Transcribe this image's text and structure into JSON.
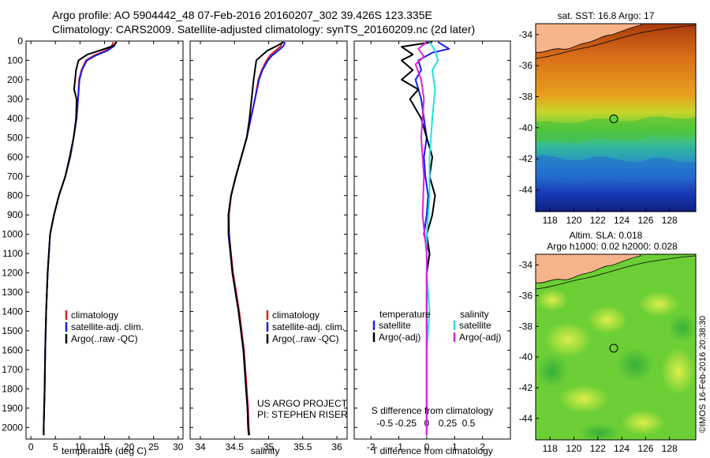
{
  "header": {
    "line1": "Argo profile: AO 5904442_48 07-Feb-2016 20160207_302 39.426S 123.335E",
    "line2": "Climatology: CARS2009. Satellite-adjusted climatology: synTS_20160209.nc (2d later)"
  },
  "colors": {
    "climatology": "#e02020",
    "satellite": "#1a1aee",
    "argo": "#000000",
    "cyan": "#22e0e0",
    "magenta": "#e020e0",
    "land": "#f7b48a"
  },
  "chart_data": [
    {
      "type": "line",
      "id": "temperature",
      "xlabel": "temperature (deg C)",
      "ylabel": "",
      "xlim": [
        -1,
        31
      ],
      "ylim": [
        2060,
        0
      ],
      "xticks": [
        "0",
        "5",
        "10",
        "15",
        "20",
        "25",
        "30"
      ],
      "xtick_values": [
        0,
        5,
        10,
        15,
        20,
        25,
        30
      ],
      "yticks": [
        "0",
        "100",
        "200",
        "300",
        "400",
        "500",
        "600",
        "700",
        "800",
        "900",
        "1000",
        "1100",
        "1200",
        "1300",
        "1400",
        "1500",
        "1600",
        "1700",
        "1800",
        "1900",
        "2000"
      ],
      "ytick_values": [
        0,
        100,
        200,
        300,
        400,
        500,
        600,
        700,
        800,
        900,
        1000,
        1100,
        1200,
        1300,
        1400,
        1500,
        1600,
        1700,
        1800,
        1900,
        2000
      ],
      "legend": [
        "climatology",
        "satellite-adj. clim.",
        "Argo(..raw -QC)"
      ],
      "series": [
        {
          "name": "climatology",
          "color": "red",
          "x": [
            16.8,
            16.5,
            15.2,
            12.8,
            11.2,
            10.3,
            9.8,
            9.6,
            9.3,
            8.7,
            8.0,
            7.0,
            5.7,
            4.7,
            3.9,
            3.4,
            3.1,
            2.9,
            2.8,
            2.7,
            2.6,
            2.6
          ],
          "y": [
            5,
            25,
            50,
            75,
            100,
            150,
            200,
            300,
            400,
            500,
            600,
            700,
            800,
            900,
            1000,
            1200,
            1400,
            1600,
            1800,
            1900,
            2000,
            2040
          ]
        },
        {
          "name": "satellite-adj. clim.",
          "color": "blue",
          "x": [
            17.3,
            17.0,
            15.6,
            13.2,
            11.4,
            10.4,
            9.9,
            9.6,
            9.3,
            8.7,
            8.0,
            7.0,
            5.7,
            4.7,
            3.9,
            3.4,
            3.1,
            2.9,
            2.8,
            2.7,
            2.6,
            2.6
          ],
          "y": [
            5,
            25,
            50,
            75,
            100,
            150,
            200,
            300,
            400,
            500,
            600,
            700,
            800,
            900,
            1000,
            1200,
            1400,
            1600,
            1800,
            1900,
            2000,
            2040
          ]
        },
        {
          "name": "Argo(..raw -QC)",
          "color": "black",
          "x": [
            17.5,
            16.8,
            14.5,
            11.5,
            9.7,
            9.2,
            9.0,
            8.8,
            9.3,
            9.2,
            8.7,
            7.9,
            7.0,
            5.7,
            4.7,
            3.9,
            3.4,
            3.1,
            2.9,
            2.8,
            2.7,
            2.6,
            2.6
          ],
          "y": [
            5,
            25,
            45,
            70,
            100,
            150,
            200,
            250,
            300,
            400,
            500,
            600,
            700,
            800,
            900,
            1000,
            1200,
            1400,
            1600,
            1800,
            1900,
            2000,
            2040
          ]
        }
      ]
    },
    {
      "type": "line",
      "id": "salinity",
      "xlabel": "salinity",
      "xlim": [
        33.85,
        36.15
      ],
      "ylim": [
        2060,
        0
      ],
      "xticks": [
        "34",
        "34.5",
        "35",
        "35.5",
        "36"
      ],
      "xtick_values": [
        34,
        34.5,
        35,
        35.5,
        36
      ],
      "legend": [
        "climatology",
        "satellite-adj. clim.",
        "Argo(..raw -QC)"
      ],
      "annotation": [
        "US ARGO PROJECT",
        "PI: STEPHEN RISER"
      ],
      "series": [
        {
          "name": "climatology",
          "color": "red",
          "x": [
            35.2,
            35.18,
            35.1,
            35.02,
            34.97,
            34.9,
            34.85,
            34.8,
            34.74,
            34.68,
            34.6,
            34.52,
            34.45,
            34.42,
            34.42,
            34.48,
            34.57,
            34.64,
            34.68,
            34.7,
            34.71,
            34.72
          ],
          "y": [
            5,
            25,
            50,
            75,
            100,
            150,
            200,
            300,
            400,
            500,
            600,
            700,
            800,
            900,
            1000,
            1200,
            1400,
            1600,
            1800,
            1900,
            2000,
            2040
          ]
        },
        {
          "name": "satellite-adj. clim.",
          "color": "blue",
          "x": [
            35.24,
            35.22,
            35.14,
            35.05,
            34.99,
            34.91,
            34.86,
            34.8,
            34.74,
            34.68,
            34.6,
            34.52,
            34.45,
            34.41,
            34.41,
            34.47,
            34.56,
            34.63,
            34.67,
            34.69,
            34.7,
            34.71
          ],
          "y": [
            5,
            25,
            50,
            75,
            100,
            150,
            200,
            300,
            400,
            500,
            600,
            700,
            800,
            900,
            1000,
            1200,
            1400,
            1600,
            1800,
            1900,
            2000,
            2040
          ]
        },
        {
          "name": "Argo(..raw -QC)",
          "color": "black",
          "x": [
            35.22,
            35.12,
            34.98,
            34.9,
            34.82,
            34.8,
            34.78,
            34.75,
            34.72,
            34.68,
            34.6,
            34.52,
            34.45,
            34.41,
            34.42,
            34.47,
            34.56,
            34.63,
            34.67,
            34.69,
            34.7,
            34.71
          ],
          "y": [
            5,
            25,
            50,
            75,
            100,
            150,
            200,
            300,
            400,
            500,
            600,
            700,
            800,
            900,
            1000,
            1200,
            1400,
            1600,
            1800,
            1900,
            2000,
            2040
          ]
        }
      ]
    },
    {
      "type": "line",
      "id": "difference",
      "xlabel": "T difference from climatology",
      "top_label": "S difference from climatology",
      "xlim": [
        -2.6,
        3.0
      ],
      "ylim": [
        2060,
        0
      ],
      "xticks": [
        "-2",
        "-1",
        "0",
        "1",
        "2"
      ],
      "xtick_values": [
        -2,
        -1,
        0,
        1,
        2
      ],
      "top_ticks": [
        "-0.5",
        "-0.25",
        "0",
        "0.25",
        "0.5"
      ],
      "top_tick_values": [
        -1.5,
        -0.75,
        0,
        0.75,
        1.5
      ],
      "legend_left_title": "temperature",
      "legend_right_title": "salinity",
      "legend_left": [
        "satellite",
        "Argo(-adj)"
      ],
      "legend_right": [
        "satellite",
        "Argo(-adj)"
      ],
      "series": [
        {
          "name": "T satellite",
          "color": "blue",
          "x": [
            0.4,
            0.8,
            0.2,
            -0.3,
            -0.2,
            -0.4,
            -0.2,
            -0.1,
            0.0,
            -0.1,
            -0.05,
            0.05,
            0.0,
            -0.1,
            0.1,
            0.0,
            0.0,
            0.0,
            0.0,
            0.0,
            0.0
          ],
          "y": [
            5,
            40,
            60,
            100,
            150,
            200,
            300,
            400,
            500,
            600,
            700,
            800,
            900,
            1000,
            1100,
            1200,
            1400,
            1600,
            1800,
            2000,
            2040
          ]
        },
        {
          "name": "T Argo(-adj)",
          "color": "black",
          "x": [
            0.2,
            -0.9,
            -0.5,
            -0.9,
            -0.5,
            -0.9,
            -0.3,
            -0.6,
            -0.2,
            0.0,
            0.2,
            0.1,
            0.3,
            0.2,
            0.0,
            0.1,
            0.0,
            0.0,
            0.0,
            0.0,
            0.0
          ],
          "y": [
            5,
            30,
            70,
            100,
            150,
            200,
            250,
            300,
            400,
            500,
            600,
            700,
            800,
            900,
            1000,
            1100,
            1200,
            1400,
            1600,
            1800,
            2040
          ]
        },
        {
          "name": "S satellite",
          "color": "cyan",
          "x": [
            0.1,
            0.3,
            0.4,
            0.2,
            0.3,
            0.2,
            0.1,
            0.1,
            0.0,
            0.0,
            0.1,
            0.0,
            0.0,
            0.0
          ],
          "y": [
            5,
            50,
            100,
            150,
            250,
            400,
            600,
            800,
            1000,
            1200,
            1400,
            1600,
            1800,
            2040
          ]
        },
        {
          "name": "S Argo(-adj)",
          "color": "magenta",
          "x": [
            0.0,
            -0.3,
            -0.1,
            -0.4,
            -0.2,
            -0.1,
            -0.2,
            -0.1,
            -0.15,
            0.0,
            0.0,
            0.0
          ],
          "y": [
            5,
            40,
            80,
            120,
            200,
            300,
            500,
            700,
            900,
            1100,
            1400,
            2040
          ]
        }
      ]
    },
    {
      "type": "heatmap",
      "id": "sst-map",
      "title": "sat. SST: 16.8 Argo: 17",
      "xticks": [
        "118",
        "120",
        "122",
        "124",
        "126",
        "128"
      ],
      "xtick_values": [
        118,
        120,
        122,
        124,
        126,
        128
      ],
      "yticks": [
        "-34",
        "-36",
        "-38",
        "-40",
        "-42",
        "-44"
      ],
      "ytick_values": [
        -34,
        -36,
        -38,
        -40,
        -42,
        -44
      ],
      "xlim": [
        116.8,
        130.2
      ],
      "ylim": [
        -45.4,
        -33.3
      ],
      "float_position": [
        123.335,
        -39.426
      ]
    },
    {
      "type": "heatmap",
      "id": "sla-map",
      "title": "Altim. SLA: 0.018",
      "subtitle": "Argo h1000: 0.02 h2000: 0.028",
      "xticks": [
        "118",
        "120",
        "122",
        "124",
        "126",
        "128"
      ],
      "xtick_values": [
        118,
        120,
        122,
        124,
        126,
        128
      ],
      "yticks": [
        "-34",
        "-36",
        "-38",
        "-40",
        "-42",
        "-44"
      ],
      "ytick_values": [
        -34,
        -36,
        -38,
        -40,
        -42,
        -44
      ],
      "xlim": [
        116.8,
        130.2
      ],
      "ylim": [
        -45.4,
        -33.3
      ],
      "float_position": [
        123.335,
        -39.426
      ]
    }
  ],
  "credit": "©IMOS 16-Feb-2016 20:38:30"
}
